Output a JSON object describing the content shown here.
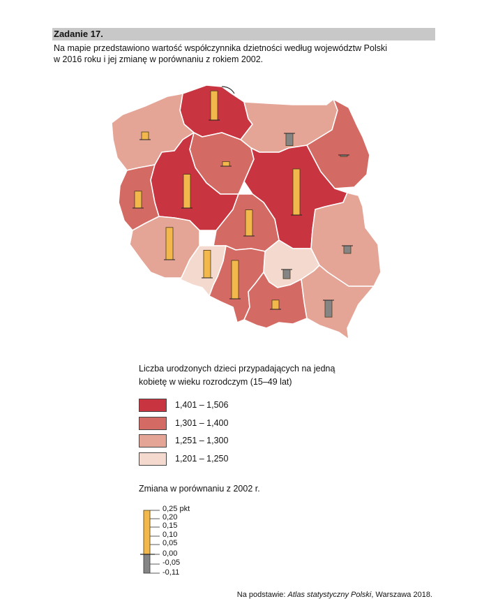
{
  "task": {
    "title": "Zadanie 17.",
    "intro_lines": [
      "Na mapie przedstawiono wartość współczynnika dzietności według województw Polski",
      "w 2016 roku i jej zmianę w porównaniu z rokiem 2002."
    ]
  },
  "legend": {
    "title_lines": [
      "Liczba urodzonych dzieci przypadających na jedną",
      "kobietę w wieku rozrodczym (15–49 lat)"
    ],
    "classes": [
      {
        "label": "1,401 – 1,506",
        "color": "#c8343f"
      },
      {
        "label": "1,301 – 1,400",
        "color": "#d46a64"
      },
      {
        "label": "1,251 – 1,300",
        "color": "#e4a597"
      },
      {
        "label": "1,201 – 1,250",
        "color": "#f4d9cf"
      }
    ]
  },
  "change_legend": {
    "title": "Zmiana w porównaniu z 2002 r.",
    "ticks": [
      "0,25 pkt",
      "0,20",
      "0,15",
      "0,10",
      "0,05",
      "0,00",
      "-0,05",
      "-0,11"
    ],
    "positive_color": "#f2b84b",
    "negative_color": "#858585"
  },
  "map_data": {
    "regions": [
      {
        "id": "pomorskie",
        "class": 0,
        "change": 0.19
      },
      {
        "id": "zachodniopomorskie",
        "class": 2,
        "change": 0.05
      },
      {
        "id": "warminsko-mazurskie",
        "class": 2,
        "change": -0.08
      },
      {
        "id": "podlaskie",
        "class": 1,
        "change": -0.01
      },
      {
        "id": "kujawsko-pomorskie",
        "class": 1,
        "change": 0.03
      },
      {
        "id": "lubuskie",
        "class": 1,
        "change": 0.11
      },
      {
        "id": "wielkopolskie",
        "class": 0,
        "change": 0.22
      },
      {
        "id": "mazowieckie",
        "class": 0,
        "change": 0.3
      },
      {
        "id": "lodzkie",
        "class": 1,
        "change": 0.17
      },
      {
        "id": "lubelskie",
        "class": 2,
        "change": -0.05
      },
      {
        "id": "dolnoslaskie",
        "class": 2,
        "change": 0.21
      },
      {
        "id": "opolskie",
        "class": 3,
        "change": 0.18
      },
      {
        "id": "slaskie",
        "class": 1,
        "change": 0.25
      },
      {
        "id": "swietokrzyskie",
        "class": 3,
        "change": -0.06
      },
      {
        "id": "malopolskie",
        "class": 1,
        "change": 0.06
      },
      {
        "id": "podkarpackie",
        "class": 2,
        "change": -0.11
      }
    ]
  },
  "source": {
    "prefix": "Na podstawie: ",
    "title": "Atlas statystyczny Polski",
    "suffix": ", Warszawa 2018."
  }
}
